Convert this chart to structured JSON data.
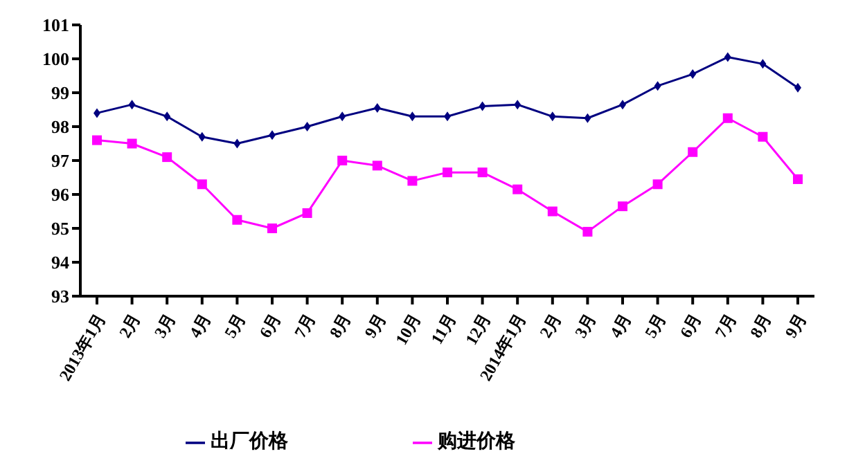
{
  "chart_data": {
    "type": "line",
    "categories": [
      "2013年1月",
      "2月",
      "3月",
      "4月",
      "5月",
      "6月",
      "7月",
      "8月",
      "9月",
      "10月",
      "11月",
      "12月",
      "2014年1月",
      "2月",
      "3月",
      "4月",
      "5月",
      "6月",
      "7月",
      "8月",
      "9月"
    ],
    "series": [
      {
        "name": "出厂价格",
        "color": "#000080",
        "marker": "diamond",
        "values": [
          98.4,
          98.65,
          98.3,
          97.7,
          97.5,
          97.75,
          98.0,
          98.3,
          98.55,
          98.3,
          98.3,
          98.6,
          98.65,
          98.3,
          98.25,
          98.65,
          99.2,
          99.55,
          100.05,
          99.85,
          99.15
        ]
      },
      {
        "name": "购进价格",
        "color": "#ff00ff",
        "marker": "square",
        "values": [
          97.6,
          97.5,
          97.1,
          96.3,
          95.25,
          95.0,
          95.45,
          97.0,
          96.85,
          96.4,
          96.65,
          96.65,
          96.15,
          95.5,
          94.9,
          95.65,
          96.3,
          97.25,
          98.25,
          97.7,
          96.45
        ]
      }
    ],
    "ylim": [
      93,
      101
    ],
    "yticks": [
      93,
      94,
      95,
      96,
      97,
      98,
      99,
      100,
      101
    ],
    "grid": false,
    "legend": "bottom",
    "line_style": "solid"
  }
}
